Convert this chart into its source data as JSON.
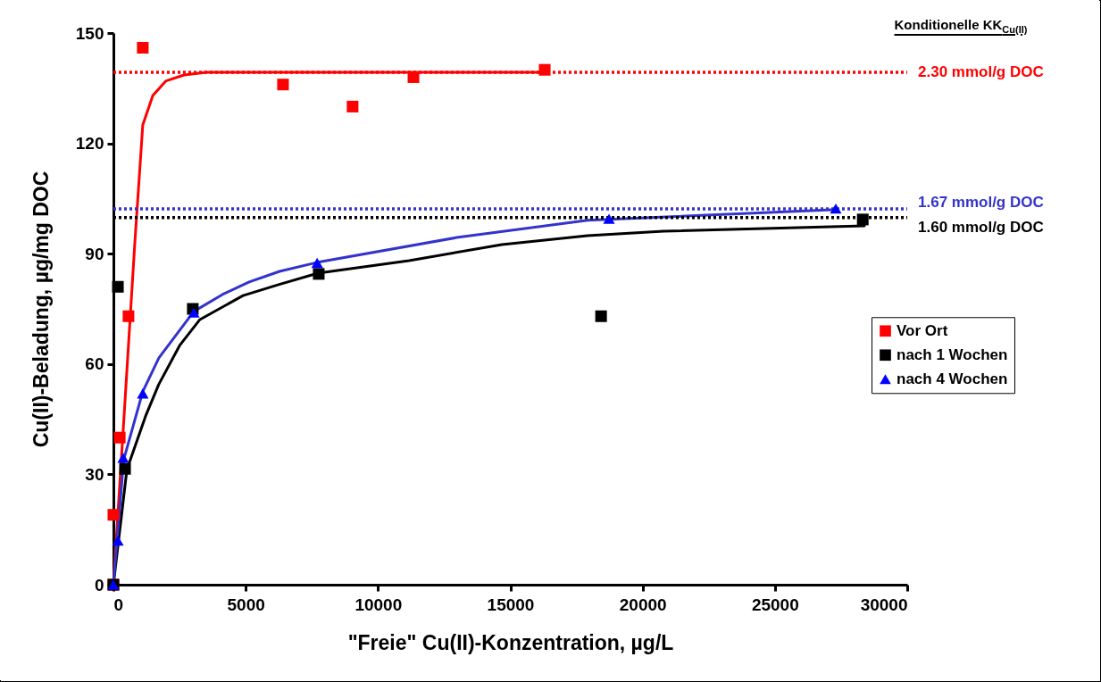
{
  "chart_data": {
    "type": "scatter",
    "xlabel": "\"Freie\" Cu(II)-Konzentration, µg/L",
    "ylabel": "Cu(II)-Beladung, µg/mg DOC",
    "xlim": [
      0,
      30000
    ],
    "ylim": [
      0,
      150
    ],
    "xticks": [
      0,
      5000,
      10000,
      15000,
      20000,
      25000,
      30000
    ],
    "yticks": [
      0,
      30,
      60,
      90,
      120,
      150
    ],
    "legend": "right",
    "annotations": [
      "Konditionelle KK$_{Cu(II)}$"
    ],
    "series": [
      {
        "type": "line",
        "color": "#ff0000",
        "line_style": "solid",
        "marker": "none",
        "x": [
          0,
          370,
          810,
          1110,
          1490,
          1990,
          2670,
          3510,
          16270
        ],
        "values": [
          0,
          42,
          93,
          125,
          133,
          137,
          138.6,
          139.3,
          139.3
        ]
      },
      {
        "type": "line",
        "color": "#000000",
        "line_style": "solid",
        "marker": "none",
        "x": [
          0,
          510,
          1230,
          1710,
          2500,
          3270,
          4900,
          6240,
          7730,
          11170,
          14680,
          17920,
          20790,
          28380
        ],
        "values": [
          0,
          31.3,
          46.1,
          54.4,
          65,
          72.1,
          78.6,
          81.6,
          84.7,
          88.1,
          92.5,
          94.9,
          96.1,
          97.6
        ]
      },
      {
        "type": "line",
        "color": "#3333cc",
        "line_style": "solid",
        "marker": "none",
        "x": [
          0,
          390,
          1110,
          1720,
          3040,
          4120,
          5130,
          6280,
          7680,
          12980,
          17920,
          27340
        ],
        "values": [
          0,
          34,
          52.5,
          61.7,
          74.3,
          78.9,
          82.3,
          85.2,
          87.6,
          94.4,
          99.1,
          102
        ]
      },
      {
        "name": "Vor Ort",
        "color": "#ff0000",
        "marker": "square",
        "x": [
          0,
          0,
          240,
          570,
          1110,
          6410,
          9040,
          11340,
          16300
        ],
        "values": [
          19,
          0,
          40,
          73,
          146,
          136,
          130,
          138,
          140
        ]
      },
      {
        "name": "nach 1 Wochen",
        "color": "#000000",
        "marker": "square",
        "x": [
          0,
          170,
          440,
          3000,
          7760,
          18430,
          28320
        ],
        "values": [
          0,
          81,
          31.5,
          75,
          84.5,
          73,
          99.3
        ]
      },
      {
        "name": "nach 4 Wochen",
        "color": "#0000ff",
        "marker": "triangle",
        "x": [
          0,
          170,
          370,
          1110,
          3040,
          7700,
          18730,
          27300
        ],
        "values": [
          0,
          12,
          34.5,
          52,
          74,
          87.5,
          99.5,
          102.3
        ]
      }
    ],
    "ref_lines": [
      {
        "axis": "y",
        "value": 139.3,
        "label": "2.30 mmol/g DOC",
        "color": "#ff0000",
        "line_style": "dotted"
      },
      {
        "axis": "y",
        "value": 102.2,
        "label": "1.67 mmol/g DOC",
        "color": "#3333cc",
        "line_style": "dotted"
      },
      {
        "axis": "y",
        "value": 99.8,
        "label": "1.60 mmol/g DOC",
        "color": "#000000",
        "line_style": "dotted"
      }
    ]
  }
}
